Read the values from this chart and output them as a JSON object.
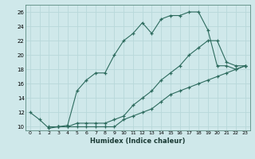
{
  "xlabel": "Humidex (Indice chaleur)",
  "bg_color": "#cfe8ea",
  "grid_color": "#b8d8da",
  "line_color": "#2d6b5e",
  "xlim": [
    -0.5,
    23.5
  ],
  "ylim": [
    9.5,
    27
  ],
  "xticks": [
    0,
    1,
    2,
    3,
    4,
    5,
    6,
    7,
    8,
    9,
    10,
    11,
    12,
    13,
    14,
    15,
    16,
    17,
    18,
    19,
    20,
    21,
    22,
    23
  ],
  "yticks": [
    10,
    12,
    14,
    16,
    18,
    20,
    22,
    24,
    26
  ],
  "line1_x": [
    0,
    1,
    2,
    3,
    4,
    5,
    6,
    7,
    8,
    9,
    10,
    11,
    12,
    13,
    14,
    15,
    16,
    17,
    18,
    19,
    20,
    21,
    22,
    23
  ],
  "line1_y": [
    12,
    11,
    9.8,
    10,
    10.2,
    15,
    16.5,
    17.5,
    17.5,
    20,
    22,
    23,
    24.5,
    23,
    25,
    25.5,
    25.5,
    26,
    26,
    23.5,
    18.5,
    18.5,
    18,
    18.5
  ],
  "line2_x": [
    2,
    3,
    4,
    5,
    6,
    7,
    8,
    9,
    10,
    11,
    12,
    13,
    14,
    15,
    16,
    17,
    18,
    19,
    20,
    21,
    22,
    23
  ],
  "line2_y": [
    10,
    10,
    10,
    10,
    10,
    10,
    10,
    10,
    11,
    11.5,
    12,
    12.5,
    13.5,
    14.5,
    15,
    15.5,
    16,
    16.5,
    17,
    17.5,
    18,
    18.5
  ],
  "line3_x": [
    3,
    4,
    5,
    6,
    7,
    8,
    9,
    10,
    11,
    12,
    13,
    14,
    15,
    16,
    17,
    18,
    19,
    20,
    21,
    22,
    23
  ],
  "line3_y": [
    10,
    10,
    10.5,
    10.5,
    10.5,
    10.5,
    11,
    11.5,
    13,
    14,
    15,
    16.5,
    17.5,
    18.5,
    20,
    21,
    22,
    22,
    19,
    18.5,
    18.5
  ]
}
